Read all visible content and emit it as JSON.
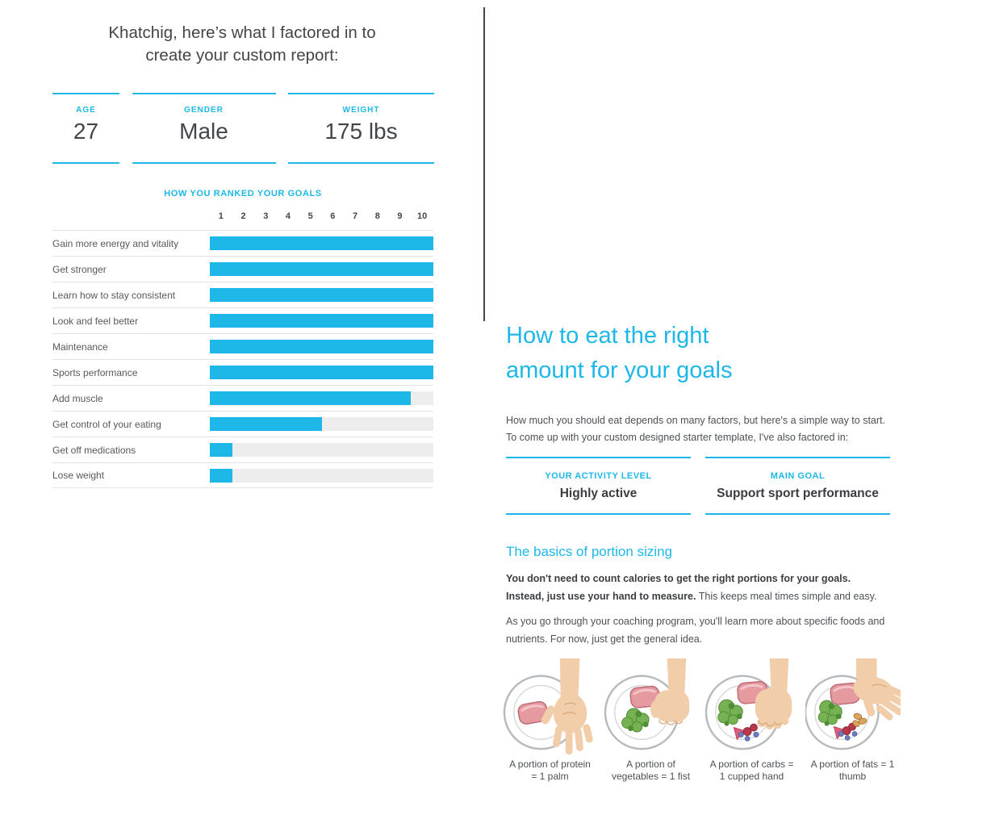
{
  "theme": {
    "accent": "#1db7e8",
    "text_dark": "#42464a",
    "text_body": "#4c5156",
    "track": "#ededed",
    "sep": "#e3e3e3",
    "divider": "#43474b"
  },
  "left": {
    "title_line1": "Khatchig, here’s what I factored in to",
    "title_line2": "create your custom report:",
    "stats": [
      {
        "label": "AGE",
        "value": "27"
      },
      {
        "label": "GENDER",
        "value": "Male"
      },
      {
        "label": "WEIGHT",
        "value": "175 lbs"
      }
    ]
  },
  "chart_data": {
    "type": "bar",
    "orientation": "horizontal",
    "title": "HOW YOU RANKED YOUR GOALS",
    "scale_ticks": [
      "1",
      "2",
      "3",
      "4",
      "5",
      "6",
      "7",
      "8",
      "9",
      "10"
    ],
    "categories": [
      "Gain more energy and vitality",
      "Get stronger",
      "Learn how to stay consistent",
      "Look and feel better",
      "Maintenance",
      "Sports performance",
      "Add muscle",
      "Get control of your eating",
      "Get off medications",
      "Lose weight"
    ],
    "values": [
      10,
      10,
      10,
      10,
      10,
      10,
      9,
      5,
      1,
      1
    ],
    "xlim": [
      0,
      10
    ],
    "bar_color": "#1db7e8",
    "track_color": "#ededed",
    "grid": false,
    "legend": false
  },
  "right": {
    "title_line1": "How to eat the right",
    "title_line2": "amount for your goals",
    "intro_line1": "How much you should eat depends on many factors, but here's a simple way to start.",
    "intro_line2": "To come up with your custom designed starter template, I've also factored in:",
    "stats": [
      {
        "label": "YOUR ACTIVITY LEVEL",
        "value": "Highly active"
      },
      {
        "label": "MAIN GOAL",
        "value": "Support sport performance"
      }
    ],
    "section_heading": "The basics of portion sizing",
    "portion_bold": "You don't need to count calories to get the right portions for your goals. Instead, just use your hand to measure.",
    "portion_rest": " This keeps meal times simple and easy.",
    "program_paragraph": "As you go through your coaching program, you'll learn more about specific foods and nutrients. For now, just get the general idea.",
    "portions": [
      {
        "icon": "plate-palm-icon",
        "caption_line1": "A portion of protein",
        "caption_line2": "= 1 palm"
      },
      {
        "icon": "plate-fist-icon",
        "caption_line1": "A portion of",
        "caption_line2": "vegetables = 1 fist"
      },
      {
        "icon": "plate-cupped-hand-icon",
        "caption_line1": "A portion of carbs =",
        "caption_line2": "1 cupped hand"
      },
      {
        "icon": "plate-thumb-icon",
        "caption_line1": "A portion of fats = 1",
        "caption_line2": "thumb"
      }
    ]
  }
}
